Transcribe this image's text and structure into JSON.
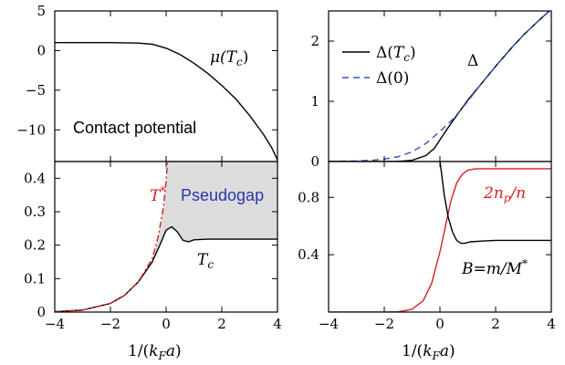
{
  "chart_data": [
    {
      "id": "tl",
      "type": "line",
      "xlim": [
        -4,
        4
      ],
      "ylim": [
        -14,
        5
      ],
      "xticks": [
        -4,
        -2,
        0,
        2,
        4
      ],
      "yticks": [
        5,
        0,
        -5,
        -10
      ],
      "ytick_labels": [
        "5",
        "0",
        "−5",
        "−10"
      ],
      "series": [
        {
          "name": "μ(Tc)",
          "color": "#000000",
          "style": "solid",
          "x": [
            -4,
            -2,
            -1,
            -0.5,
            0,
            0.5,
            1,
            1.5,
            2,
            2.5,
            3,
            3.5,
            3.8,
            4
          ],
          "y": [
            1,
            1,
            0.95,
            0.8,
            0.3,
            -0.5,
            -1.6,
            -2.9,
            -4.4,
            -6.1,
            -8.2,
            -10.6,
            -12.3,
            -13.8
          ]
        }
      ],
      "annotations": [
        {
          "text": "Contact potential",
          "x": -3.3,
          "y": -10.5
        },
        {
          "text": "μ(",
          "sub": "c",
          "x": 1.6,
          "y": -1.3
        }
      ]
    },
    {
      "id": "bl",
      "type": "line",
      "xlim": [
        -4,
        4
      ],
      "ylim": [
        0,
        0.45
      ],
      "xticks": [
        -4,
        -2,
        0,
        2,
        4
      ],
      "xtick_labels": [
        "−4",
        "−2",
        "0",
        "2",
        "4"
      ],
      "yticks": [
        0,
        0.1,
        0.2,
        0.3,
        0.4
      ],
      "ytick_labels": [
        "0",
        "0.1",
        "0.2",
        "0.3",
        "0.4"
      ],
      "xlabel": "1/(kFa)",
      "series": [
        {
          "name": "Tc",
          "color": "#000000",
          "style": "solid",
          "x": [
            -4,
            -3,
            -2,
            -1.5,
            -1,
            -0.5,
            -0.2,
            0,
            0.2,
            0.4,
            0.6,
            0.8,
            1,
            1.5,
            2,
            3,
            4
          ],
          "y": [
            0.001,
            0.006,
            0.026,
            0.05,
            0.09,
            0.15,
            0.205,
            0.245,
            0.255,
            0.24,
            0.215,
            0.21,
            0.216,
            0.218,
            0.218,
            0.218,
            0.218
          ]
        },
        {
          "name": "T*",
          "color": "#d42020",
          "style": "dashdot",
          "x": [
            -4,
            -3,
            -2,
            -1.5,
            -1,
            -0.5,
            -0.3,
            -0.1,
            0,
            0.05
          ],
          "y": [
            0.001,
            0.006,
            0.026,
            0.05,
            0.09,
            0.16,
            0.22,
            0.31,
            0.39,
            0.45
          ]
        }
      ],
      "shaded_region": {
        "label": "Pseudogap",
        "color": "#dcdcdc"
      },
      "annotations": [
        {
          "text": "T",
          "sup": "*",
          "x": -1.25,
          "y": 0.38,
          "color": "#d42020"
        },
        {
          "text": "Pseudogap",
          "x": 0.9,
          "y": 0.36,
          "color": "#2a35b0"
        },
        {
          "text": "T",
          "sub": "c",
          "x": 0.95,
          "y": 0.14
        }
      ]
    },
    {
      "id": "tr",
      "type": "line",
      "xlim": [
        -4,
        4
      ],
      "ylim": [
        0,
        2.5
      ],
      "xticks": [
        -4,
        -2,
        0,
        2,
        4
      ],
      "yticks": [
        0,
        1,
        2
      ],
      "ytick_labels": [
        "0",
        "1",
        "2"
      ],
      "legend": "top-left",
      "series": [
        {
          "name": "Δ(Tc)",
          "color": "#000000",
          "style": "solid",
          "x": [
            -4,
            -2,
            -1.5,
            -1,
            -0.5,
            -0.2,
            0,
            0.2,
            0.5,
            1,
            1.5,
            2,
            2.5,
            3,
            3.5,
            4
          ],
          "y": [
            0,
            0,
            0.003,
            0.02,
            0.1,
            0.22,
            0.36,
            0.5,
            0.7,
            1.02,
            1.3,
            1.58,
            1.85,
            2.1,
            2.32,
            2.53
          ]
        },
        {
          "name": "Δ(0)",
          "color": "#3050c8",
          "style": "dashed",
          "x": [
            -4,
            -3,
            -2.5,
            -2,
            -1.5,
            -1,
            -0.5,
            0,
            0.5,
            1,
            1.5,
            2,
            2.5,
            3,
            3.5,
            4
          ],
          "y": [
            0.003,
            0.01,
            0.02,
            0.04,
            0.08,
            0.16,
            0.3,
            0.5,
            0.72,
            1.0,
            1.3,
            1.58,
            1.85,
            2.1,
            2.32,
            2.53
          ]
        }
      ],
      "annotations": [
        {
          "text": "Δ",
          "x": 1.7,
          "y": 1.6
        }
      ]
    },
    {
      "id": "br",
      "type": "line",
      "xlim": [
        -4,
        4
      ],
      "ylim": [
        0,
        1.05
      ],
      "xticks": [
        -4,
        -2,
        0,
        2,
        4
      ],
      "xtick_labels": [
        "−4",
        "−2",
        "0",
        "2",
        "4"
      ],
      "yticks": [
        0.4,
        0.8
      ],
      "ytick_labels": [
        "0.4",
        "0.8"
      ],
      "xlabel": "1/(kFa)",
      "series": [
        {
          "name": "2np/n",
          "color": "#d42020",
          "style": "solid",
          "x": [
            -4,
            -2,
            -1.5,
            -1,
            -0.6,
            -0.3,
            0,
            0.2,
            0.4,
            0.6,
            0.8,
            1,
            1.3,
            1.6,
            2,
            3,
            4
          ],
          "y": [
            0,
            0,
            0.002,
            0.02,
            0.08,
            0.2,
            0.42,
            0.6,
            0.78,
            0.9,
            0.96,
            0.99,
            1.0,
            1.0,
            1.0,
            1.0,
            1.0
          ]
        },
        {
          "name": "B=m/M*",
          "color": "#000000",
          "style": "solid",
          "x": [
            0,
            0.05,
            0.15,
            0.3,
            0.45,
            0.6,
            0.75,
            0.9,
            1.1,
            1.5,
            2,
            3,
            4
          ],
          "y": [
            1.05,
            0.98,
            0.82,
            0.66,
            0.56,
            0.5,
            0.48,
            0.48,
            0.49,
            0.495,
            0.5,
            0.5,
            0.5
          ]
        }
      ],
      "annotations": [
        {
          "text": "2n",
          "sub": "p",
          "tail": "/n",
          "x": 1.5,
          "y": 0.88,
          "color": "#d42020"
        },
        {
          "text": "B=m/M",
          "sup": "*",
          "x": 1.25,
          "y": 0.36
        }
      ]
    }
  ]
}
